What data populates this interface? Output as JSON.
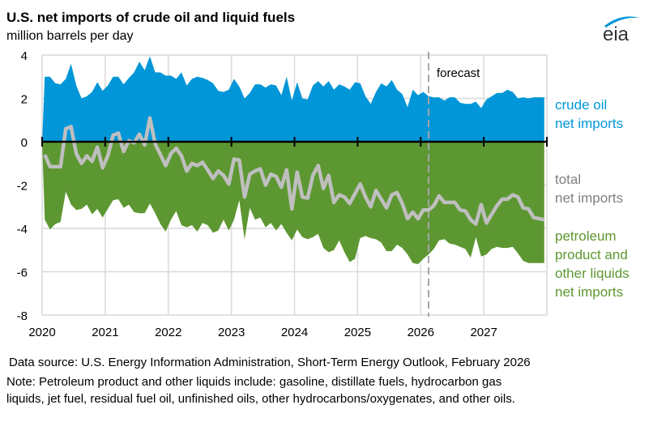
{
  "chart_data": {
    "type": "area",
    "title": "U.S. net imports of crude oil and liquid fuels",
    "subtitle": "million  barrels per day",
    "xlabel": "",
    "ylabel": "million barrels per day",
    "x_start": "2020-01",
    "frequency": "monthly",
    "xlim": [
      2020,
      2028
    ],
    "ylim": [
      -8,
      4
    ],
    "yticks": [
      "4",
      "2",
      "0",
      "-2",
      "-4",
      "-6",
      "-8"
    ],
    "ytick_values": [
      4,
      2,
      0,
      -2,
      -4,
      -6,
      -8
    ],
    "xticks": [
      "2020",
      "2021",
      "2022",
      "2023",
      "2024",
      "2025",
      "2026",
      "2027"
    ],
    "grid": true,
    "forecast_start": "2026-02",
    "annotation": "forecast",
    "legend_placement": "right",
    "series": [
      {
        "name": "crude oil net imports",
        "legend_lines": [
          "crude oil",
          "net imports"
        ],
        "kind": "area",
        "color": "#0096D7",
        "values": [
          3.0,
          3.0,
          2.7,
          2.65,
          2.9,
          3.6,
          2.6,
          2.0,
          2.1,
          2.3,
          2.75,
          2.35,
          2.6,
          3.0,
          3.0,
          2.65,
          2.95,
          3.2,
          3.7,
          3.3,
          3.95,
          3.2,
          3.2,
          3.05,
          3.05,
          2.9,
          3.2,
          2.6,
          2.9,
          3.0,
          2.95,
          2.85,
          2.7,
          2.35,
          2.3,
          2.4,
          2.9,
          2.55,
          2.0,
          2.25,
          2.65,
          2.65,
          2.5,
          2.65,
          2.6,
          2.15,
          3.0,
          1.9,
          2.75,
          2.0,
          1.95,
          2.6,
          2.8,
          2.55,
          2.8,
          2.4,
          2.65,
          2.55,
          2.4,
          2.75,
          2.7,
          2.1,
          1.75,
          2.3,
          2.7,
          2.55,
          2.85,
          2.4,
          2.2,
          1.6,
          2.4,
          2.15,
          2.3,
          2.1,
          2.05,
          2.05,
          1.9,
          2.05,
          2.05,
          1.8,
          1.75,
          1.75,
          1.85,
          1.55,
          1.95,
          2.1,
          2.25,
          2.25,
          2.4,
          2.3,
          2.0,
          2.05,
          2.0,
          2.05,
          2.05,
          2.05
        ]
      },
      {
        "name": "petroleum product and other liquids net imports",
        "legend_lines": [
          "petroleum",
          "product and",
          "other liquids",
          "net imports"
        ],
        "kind": "area",
        "color": "#5D9732",
        "values": [
          -3.6,
          -4.05,
          -3.8,
          -3.7,
          -2.3,
          -2.9,
          -3.15,
          -3.1,
          -2.9,
          -3.35,
          -3.1,
          -3.5,
          -3.1,
          -2.7,
          -2.65,
          -3.05,
          -2.9,
          -3.25,
          -3.3,
          -3.3,
          -2.85,
          -3.3,
          -3.8,
          -4.15,
          -3.6,
          -3.2,
          -3.85,
          -3.95,
          -3.85,
          -4.15,
          -3.75,
          -3.85,
          -4.2,
          -4.1,
          -3.6,
          -4.1,
          -3.6,
          -2.7,
          -4.5,
          -3.05,
          -3.6,
          -3.5,
          -3.95,
          -3.75,
          -4.1,
          -3.8,
          -4.2,
          -4.55,
          -4.05,
          -4.4,
          -4.5,
          -4.4,
          -4.25,
          -4.9,
          -5.1,
          -5.0,
          -4.55,
          -5.1,
          -5.55,
          -5.4,
          -4.45,
          -4.35,
          -4.45,
          -4.5,
          -4.65,
          -5.05,
          -5.05,
          -4.75,
          -4.9,
          -5.2,
          -5.6,
          -5.65,
          -5.4,
          -5.2,
          -4.95,
          -4.55,
          -4.5,
          -4.7,
          -4.75,
          -4.85,
          -4.95,
          -5.35,
          -4.4,
          -5.3,
          -5.2,
          -4.95,
          -4.85,
          -4.9,
          -4.9,
          -4.85,
          -5.15,
          -5.5,
          -5.6,
          -5.6,
          -5.6,
          -5.6
        ]
      },
      {
        "name": "total net imports",
        "legend_lines": [
          "total",
          "net imports"
        ],
        "kind": "line",
        "color": "#BFBFBF",
        "values": [
          -0.6,
          -1.15,
          -1.15,
          -1.15,
          0.6,
          0.7,
          -0.55,
          -1.0,
          -0.65,
          -0.9,
          -0.25,
          -1.2,
          -0.65,
          0.3,
          0.4,
          -0.45,
          0.05,
          -0.05,
          0.35,
          -0.15,
          1.1,
          -0.1,
          -0.6,
          -1.1,
          -0.55,
          -0.3,
          -0.65,
          -1.35,
          -1.0,
          -1.1,
          -0.95,
          -1.3,
          -1.7,
          -1.35,
          -1.55,
          -1.95,
          -0.8,
          -0.85,
          -2.55,
          -1.5,
          -1.35,
          -1.25,
          -2.0,
          -1.5,
          -1.6,
          -2.1,
          -1.3,
          -3.1,
          -1.4,
          -2.55,
          -2.6,
          -1.55,
          -1.1,
          -2.15,
          -1.55,
          -2.8,
          -2.45,
          -2.55,
          -2.85,
          -2.4,
          -1.95,
          -2.55,
          -3.0,
          -2.25,
          -2.65,
          -3.05,
          -2.45,
          -2.35,
          -2.85,
          -3.55,
          -3.25,
          -3.55,
          -3.15,
          -3.15,
          -2.95,
          -2.5,
          -2.8,
          -2.8,
          -2.8,
          -3.15,
          -3.2,
          -3.6,
          -3.8,
          -2.9,
          -3.75,
          -3.35,
          -2.95,
          -2.65,
          -2.65,
          -2.45,
          -2.55,
          -3.05,
          -3.1,
          -3.5,
          -3.55,
          -3.6
        ]
      }
    ]
  },
  "header": {
    "title": "U.S. net imports of crude oil and liquid fuels",
    "subtitle": "million  barrels per day",
    "logo_text": "eia"
  },
  "footer": {
    "source": "Data source: U.S. Energy Information Administration,  Short-Term Energy Outlook, February 2026",
    "note_line1": "Note: Petroleum product and other liquids include: gasoline, distillate fuels, hydrocarbon gas",
    "note_line2": "liquids, jet fuel, residual fuel oil, unfinished oils, other hydrocarbons/oxygenates, and other oils."
  },
  "colors": {
    "crude": "#0096D7",
    "product": "#5D9732",
    "total": "#BFBFBF",
    "total_label": "#808080",
    "grid": "#D9D9D9",
    "forecast_line": "#A6A6A6"
  }
}
